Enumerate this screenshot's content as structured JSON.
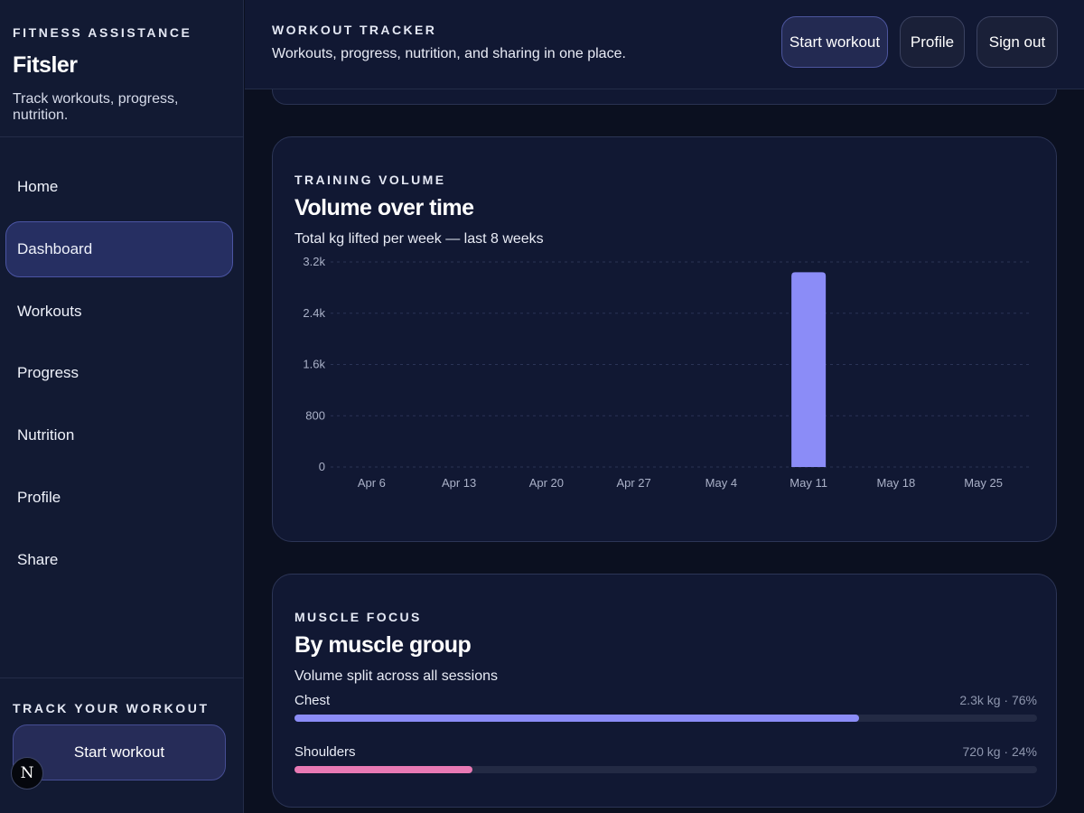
{
  "sidebar": {
    "eyebrow": "FITNESS ASSISTANCE",
    "title": "Fitsler",
    "subtitle": "Track workouts, progress, nutrition.",
    "items": [
      {
        "label": "Home",
        "active": false
      },
      {
        "label": "Dashboard",
        "active": true
      },
      {
        "label": "Workouts",
        "active": false
      },
      {
        "label": "Progress",
        "active": false
      },
      {
        "label": "Nutrition",
        "active": false
      },
      {
        "label": "Profile",
        "active": false
      },
      {
        "label": "Share",
        "active": false
      }
    ],
    "footer": {
      "eyebrow": "TRACK YOUR WORKOUT",
      "button_label": "Start workout",
      "badge_letter": "N"
    }
  },
  "topbar": {
    "eyebrow": "WORKOUT TRACKER",
    "subtitle": "Workouts, progress, nutrition, and sharing in one place.",
    "start_label": "Start workout",
    "profile_label": "Profile",
    "signout_label": "Sign out"
  },
  "volume_card": {
    "eyebrow": "TRAINING VOLUME",
    "title": "Volume over time",
    "subtitle": "Total kg lifted per week — last 8 weeks"
  },
  "muscle_card": {
    "eyebrow": "MUSCLE FOCUS",
    "title": "By muscle group",
    "subtitle": "Volume split across all sessions",
    "groups": [
      {
        "name": "Chest",
        "value_label": "2.3k kg · 76%",
        "percent": 76,
        "color": "#8b8cf7"
      },
      {
        "name": "Shoulders",
        "value_label": "720 kg · 24%",
        "percent": 24,
        "color": "#e879b4"
      }
    ]
  },
  "colors": {
    "accent": "#8b8cf7",
    "pink": "#e879b4",
    "background": "#0b1020",
    "card": "#111833"
  },
  "chart_data": {
    "type": "bar",
    "title": "Volume over time",
    "categories": [
      "Apr 6",
      "Apr 13",
      "Apr 20",
      "Apr 27",
      "May 4",
      "May 11",
      "May 18",
      "May 25"
    ],
    "values": [
      0,
      0,
      0,
      0,
      0,
      3040,
      0,
      0
    ],
    "y_ticks": [
      "0",
      "800",
      "1.6k",
      "2.4k",
      "3.2k"
    ],
    "y_tick_values": [
      0,
      800,
      1600,
      2400,
      3200
    ],
    "ylim": [
      0,
      3200
    ],
    "grid": true,
    "bar_color": "#8b8cf7"
  }
}
